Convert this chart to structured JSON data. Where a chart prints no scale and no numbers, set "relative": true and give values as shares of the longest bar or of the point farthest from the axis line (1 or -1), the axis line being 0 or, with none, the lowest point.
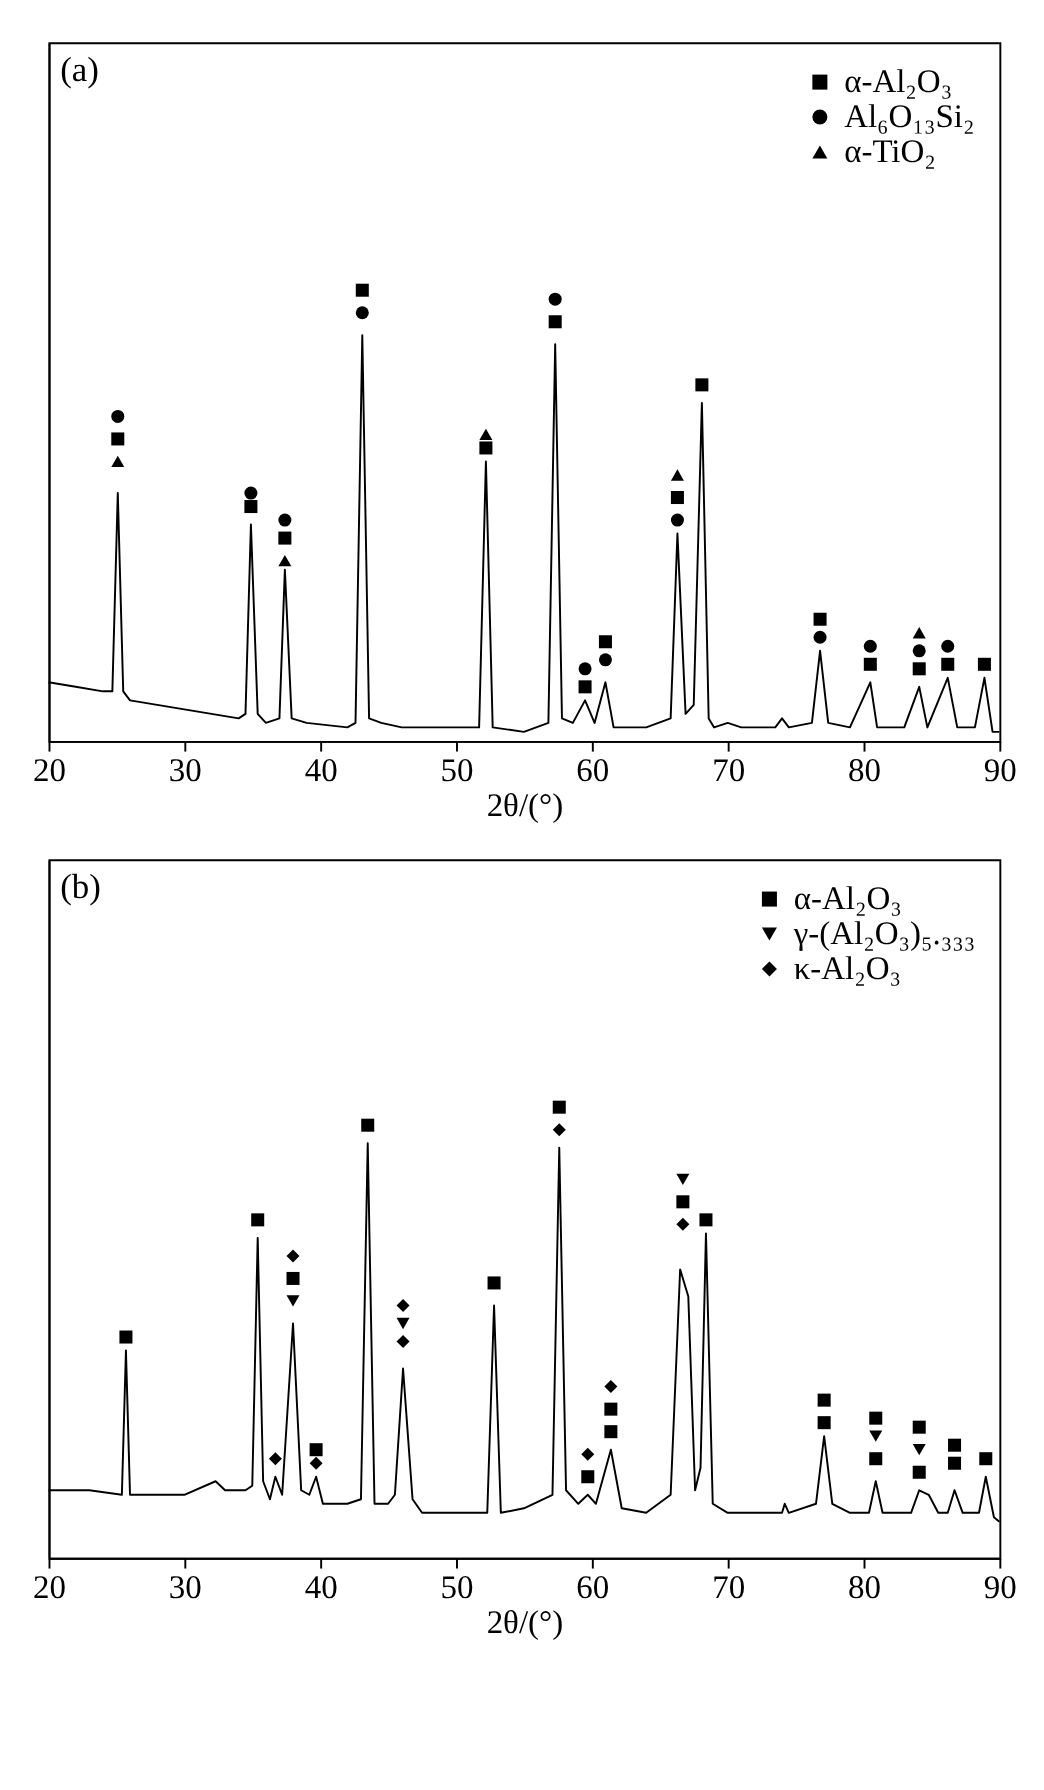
{
  "chart_data": [
    {
      "type": "line",
      "relative": true,
      "xlabel": "2θ/(°)",
      "xlim": [
        20,
        90
      ],
      "xticks": [
        20,
        30,
        40,
        50,
        60,
        70,
        80,
        90
      ],
      "tick_labels": "x",
      "legend": "top right",
      "annotations": [
        "(a)"
      ],
      "series": [
        {
          "type": "line",
          "color": "#000000",
          "x": [
            20,
            22,
            24,
            24.7,
            25.1,
            25.5,
            26,
            28,
            30,
            32,
            34,
            34.5,
            34.9,
            35.4,
            36,
            37,
            37.4,
            37.9,
            39,
            42,
            42.6,
            43.1,
            43.6,
            44.5,
            46,
            48,
            50,
            51.7,
            52.2,
            52.7,
            55,
            56.8,
            57.3,
            57.8,
            58.6,
            59.5,
            60.2,
            61.0,
            61.6,
            64,
            65.8,
            66.3,
            66.9,
            67.5,
            68.1,
            68.6,
            69,
            70,
            71,
            73.5,
            74,
            74.5,
            76.2,
            76.8,
            77.4,
            79,
            80.5,
            81,
            83,
            84.1,
            84.7,
            86.2,
            86.9,
            88.2,
            88.9,
            89.5,
            90
          ],
          "values": [
            0.13,
            0.12,
            0.11,
            0.11,
            0.55,
            0.11,
            0.09,
            0.08,
            0.07,
            0.06,
            0.05,
            0.06,
            0.48,
            0.06,
            0.04,
            0.05,
            0.38,
            0.05,
            0.04,
            0.03,
            0.04,
            0.9,
            0.05,
            0.04,
            0.03,
            0.03,
            0.03,
            0.03,
            0.62,
            0.03,
            0.02,
            0.04,
            0.88,
            0.05,
            0.04,
            0.09,
            0.04,
            0.13,
            0.03,
            0.03,
            0.05,
            0.46,
            0.06,
            0.08,
            0.75,
            0.05,
            0.03,
            0.04,
            0.03,
            0.03,
            0.05,
            0.03,
            0.04,
            0.2,
            0.04,
            0.03,
            0.13,
            0.03,
            0.03,
            0.12,
            0.03,
            0.14,
            0.03,
            0.03,
            0.14,
            0.02,
            0.02
          ]
        },
        {
          "type": "scatter",
          "name": "α-Al₂O₃",
          "color": "#000000",
          "marker": "square",
          "x": [
            25.1,
            34.9,
            37.4,
            43.1,
            52.2,
            57.3,
            59.5,
            61.0,
            66.3,
            68.1,
            76.8,
            80.5,
            84.1,
            86.2,
            88.9
          ],
          "values": [
            0.67,
            0.52,
            0.45,
            1.0,
            0.65,
            0.93,
            0.12,
            0.22,
            0.54,
            0.79,
            0.27,
            0.17,
            0.16,
            0.17,
            0.17
          ]
        },
        {
          "type": "scatter",
          "name": "Al₆O₁₃Si₂",
          "color": "#000000",
          "marker": "circle",
          "x": [
            25.1,
            34.9,
            37.4,
            43.1,
            57.3,
            59.5,
            61.0,
            66.3,
            76.8,
            80.5,
            84.1,
            86.2
          ],
          "values": [
            0.72,
            0.55,
            0.49,
            0.95,
            0.98,
            0.16,
            0.18,
            0.49,
            0.23,
            0.21,
            0.2,
            0.21
          ]
        },
        {
          "type": "scatter",
          "name": "α-TiO₂",
          "color": "#000000",
          "marker": "triangle",
          "x": [
            25.1,
            37.4,
            52.2,
            66.3,
            84.1
          ],
          "values": [
            0.62,
            0.4,
            0.68,
            0.59,
            0.24
          ]
        }
      ]
    },
    {
      "type": "line",
      "relative": true,
      "xlabel": "2θ/(°)",
      "xlim": [
        20,
        90
      ],
      "xticks": [
        20,
        30,
        40,
        50,
        60,
        70,
        80,
        90
      ],
      "tick_labels": "x",
      "legend": "top right",
      "annotations": [
        "(b)"
      ],
      "series": [
        {
          "type": "line",
          "color": "#000000",
          "x": [
            20,
            23,
            25.4,
            25.7,
            26.0,
            27.5,
            30,
            32.3,
            33,
            34.5,
            35.0,
            35.4,
            35.8,
            36.3,
            36.7,
            37.2,
            38.0,
            38.6,
            39.2,
            39.7,
            40.2,
            42,
            43.0,
            43.5,
            44.0,
            45,
            45.5,
            46.1,
            46.8,
            47.5,
            50,
            52.3,
            52.8,
            53.3,
            55,
            57.1,
            57.6,
            58.1,
            59.0,
            59.7,
            60.3,
            61.4,
            62.2,
            64,
            65.8,
            66.5,
            67.1,
            67.6,
            68.0,
            68.4,
            68.9,
            70,
            74,
            74.2,
            74.5,
            76.5,
            77.1,
            77.7,
            79,
            80.4,
            80.9,
            81.4,
            83.5,
            84.1,
            84.8,
            85.5,
            86.2,
            86.7,
            87.3,
            88.5,
            89.0,
            89.6,
            90
          ],
          "values": [
            0.15,
            0.15,
            0.14,
            0.46,
            0.14,
            0.14,
            0.14,
            0.17,
            0.15,
            0.15,
            0.16,
            0.71,
            0.17,
            0.13,
            0.18,
            0.14,
            0.52,
            0.15,
            0.14,
            0.18,
            0.12,
            0.12,
            0.13,
            0.92,
            0.12,
            0.12,
            0.14,
            0.42,
            0.13,
            0.1,
            0.1,
            0.1,
            0.56,
            0.1,
            0.11,
            0.14,
            0.91,
            0.15,
            0.12,
            0.14,
            0.12,
            0.24,
            0.11,
            0.1,
            0.14,
            0.64,
            0.58,
            0.15,
            0.2,
            0.72,
            0.12,
            0.1,
            0.1,
            0.12,
            0.1,
            0.12,
            0.27,
            0.12,
            0.1,
            0.1,
            0.17,
            0.1,
            0.1,
            0.15,
            0.14,
            0.1,
            0.1,
            0.15,
            0.1,
            0.1,
            0.18,
            0.09,
            0.08
          ]
        },
        {
          "type": "scatter",
          "name": "α-Al₂O₃",
          "color": "#000000",
          "marker": "square",
          "x": [
            25.7,
            35.4,
            38.0,
            39.7,
            43.5,
            52.8,
            57.6,
            59.7,
            61.4,
            61.4,
            66.7,
            68.4,
            77.1,
            77.1,
            80.9,
            80.9,
            84.1,
            84.1,
            86.7,
            86.7,
            89.0
          ],
          "values": [
            0.49,
            0.75,
            0.62,
            0.24,
            0.96,
            0.61,
            1.0,
            0.18,
            0.28,
            0.33,
            0.79,
            0.75,
            0.3,
            0.35,
            0.22,
            0.31,
            0.19,
            0.29,
            0.21,
            0.25,
            0.22
          ]
        },
        {
          "type": "scatter",
          "name": "γ-(Al₂O₃)₅.₃₃₃",
          "color": "#000000",
          "marker": "triangle-down",
          "x": [
            38.0,
            46.1,
            66.7,
            80.9,
            84.1
          ],
          "values": [
            0.57,
            0.52,
            0.84,
            0.27,
            0.24
          ]
        },
        {
          "type": "scatter",
          "name": "κ-Al₂O₃",
          "color": "#000000",
          "marker": "diamond",
          "x": [
            36.7,
            38.0,
            39.7,
            46.1,
            46.1,
            57.6,
            59.7,
            61.4,
            66.7
          ],
          "values": [
            0.22,
            0.67,
            0.21,
            0.48,
            0.56,
            0.95,
            0.23,
            0.38,
            0.74
          ]
        }
      ]
    }
  ]
}
